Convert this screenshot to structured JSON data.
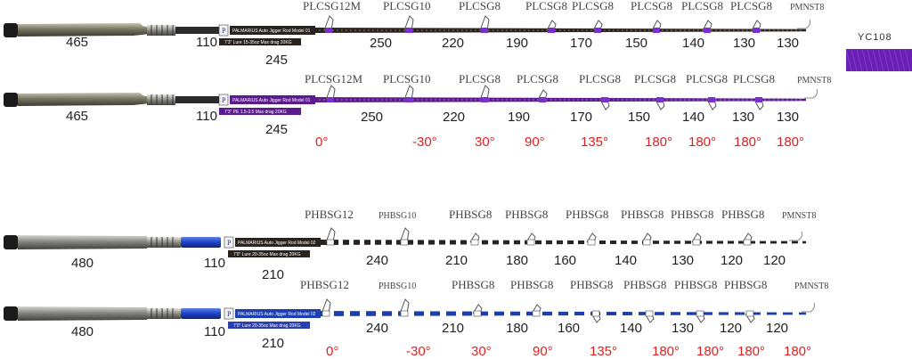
{
  "swatch": {
    "label": "YC108",
    "color": "#6a1fb5"
  },
  "colors": {
    "purple": "#5b1a8e",
    "blue": "#1c3fb0",
    "dark": "#2a221d",
    "angle_red": "#e02020"
  },
  "rods": [
    {
      "name": "rod-1",
      "blank_color": "dark",
      "decal": "PALMARIUS Auto Jigger Rod Model 01",
      "label_text": "7'3\" Lure 15-35oz Max drag 20KG",
      "handle_lengths": [
        "465",
        "110",
        "245"
      ],
      "guides": [
        "PLCSG12M",
        "PLCSG10",
        "PLCSG8",
        "PLCSG8",
        "PLCSG8",
        "PLCSG8",
        "PLCSG8",
        "PLCSG8",
        "PMNST8"
      ],
      "spacings": [
        "250",
        "220",
        "190",
        "170",
        "150",
        "140",
        "130",
        "130"
      ],
      "angles": []
    },
    {
      "name": "rod-2",
      "blank_color": "purple",
      "decal": "PALMARIUS Auto Jigger Rod Model 01",
      "label_text": "7'3\" PE 1.5-3.5 Max drag 20KG",
      "handle_lengths": [
        "465",
        "110",
        "245"
      ],
      "guides": [
        "PLCSG12M",
        "PLCSG10",
        "PLCSG8",
        "PLCSG8",
        "PLCSG8",
        "PLCSG8",
        "PLCSG8",
        "PLCSG8",
        "PMNST8"
      ],
      "spacings": [
        "250",
        "220",
        "190",
        "170",
        "150",
        "140",
        "130",
        "130"
      ],
      "angles": [
        "0°",
        "-30°",
        "30°",
        "90°",
        "135°",
        "180°",
        "180°",
        "180°",
        "180°"
      ]
    },
    {
      "name": "rod-3",
      "blank_color": "dark",
      "decal": "PALMARIUS Auto Jigger Rod Model 02",
      "label_text": "7'0\" Lure 20-35oz Max drag 20KG",
      "handle_lengths": [
        "480",
        "110",
        "210"
      ],
      "guides": [
        "PHBSG12",
        "PHBSG10",
        "PHBSG8",
        "PHBSG8",
        "PHBSG8",
        "PHBSG8",
        "PHBSG8",
        "PHBSG8",
        "PMNST8"
      ],
      "spacings": [
        "240",
        "210",
        "180",
        "160",
        "140",
        "130",
        "120",
        "120"
      ],
      "angles": []
    },
    {
      "name": "rod-4",
      "blank_color": "blue",
      "decal": "PALMARIUS Auto Jigger Rod Model 02",
      "label_text": "7'0\" Lure 20-35oz Max drag 20KG",
      "handle_lengths": [
        "480",
        "110",
        "210"
      ],
      "guides": [
        "PHBSG12",
        "PHBSG10",
        "PHBSG8",
        "PHBSG8",
        "PHBSG8",
        "PHBSG8",
        "PHBSG8",
        "PHBSG8",
        "PMNST8"
      ],
      "spacings": [
        "240",
        "210",
        "180",
        "160",
        "140",
        "130",
        "120",
        "120"
      ],
      "angles": [
        "0°",
        "-30°",
        "30°",
        "90°",
        "135°",
        "180°",
        "180°",
        "180°",
        "180°"
      ]
    }
  ]
}
